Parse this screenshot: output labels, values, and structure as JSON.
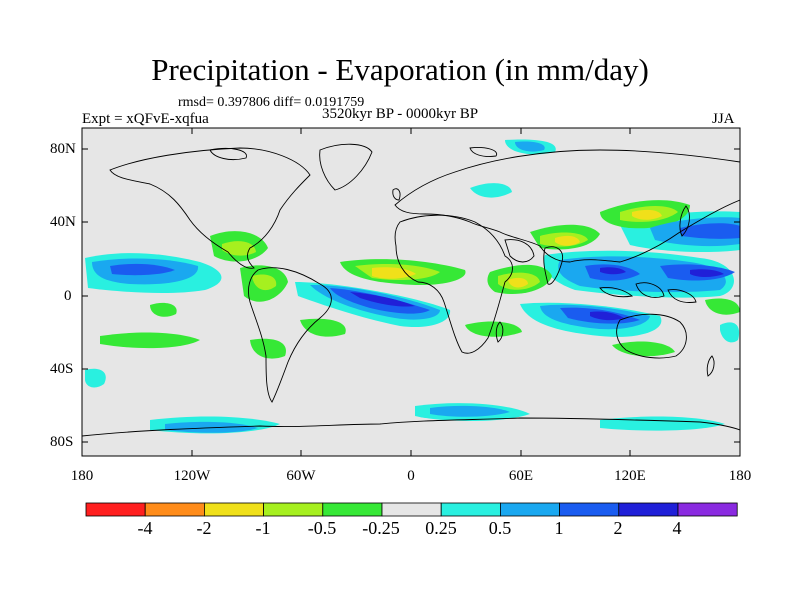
{
  "title": "Precipitation - Evaporation (in mm/day)",
  "stats": "rmsd= 0.397806 diff= 0.0191759",
  "experiment": "Expt = xQFvE-xqfua",
  "period": "3520kyr BP - 0000kyr BP",
  "season": "JJA",
  "lat_labels": [
    "80N",
    "40N",
    "0",
    "40S",
    "80S"
  ],
  "lon_labels": [
    "180",
    "120W",
    "60W",
    "0",
    "60E",
    "120E",
    "180"
  ],
  "colorbar": {
    "labels": [
      "-4",
      "-2",
      "-1",
      "-0.5",
      "-0.25",
      "0.25",
      "0.5",
      "1",
      "2",
      "4"
    ],
    "colors": [
      "#ff1f1f",
      "#ff8c1a",
      "#f0e01a",
      "#a6f01f",
      "#36e836",
      "#e6e6e6",
      "#29f0e0",
      "#1aa8f0",
      "#1a5cf0",
      "#2020d8",
      "#8a2ae0"
    ]
  },
  "colors": {
    "ocean": "#e6e6e6",
    "coast": "#000000"
  }
}
